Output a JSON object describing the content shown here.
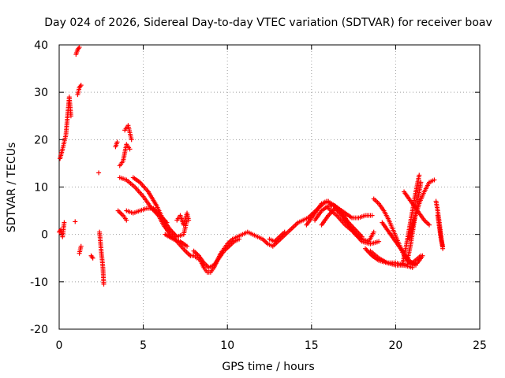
{
  "chart_data": {
    "type": "scatter",
    "title": "Day 024 of 2026, Sidereal Day-to-day VTEC variation (SDTVAR) for receiver boav",
    "xlabel": "GPS time / hours",
    "ylabel": "SDTVAR / TECUs",
    "xlim": [
      0,
      25
    ],
    "ylim": [
      -20,
      40
    ],
    "xticks": [
      0,
      5,
      10,
      15,
      20,
      25
    ],
    "xtick_labels": [
      "0",
      "5",
      "10",
      "15",
      "20",
      "25"
    ],
    "yticks": [
      -20,
      -10,
      0,
      10,
      20,
      30,
      40
    ],
    "ytick_labels": [
      "-20",
      "-10",
      "0",
      "10",
      "20",
      "30",
      "40"
    ],
    "grid": true,
    "marker": "+",
    "color": "#ff0000",
    "series": [
      {
        "name": "SDTVAR",
        "clusters": [
          {
            "kind": "line",
            "x": [
              0.0,
              0.1,
              0.2,
              0.3
            ],
            "y": [
              0.5,
              1.0,
              -0.5,
              2.5
            ]
          },
          {
            "kind": "line",
            "x": [
              0.05,
              0.2,
              0.4,
              0.5,
              0.6,
              0.7
            ],
            "y": [
              16.0,
              18.0,
              21.0,
              25.0,
              29.0,
              25.0
            ]
          },
          {
            "kind": "line",
            "x": [
              1.0,
              1.1,
              1.2
            ],
            "y": [
              38.0,
              39.0,
              39.5
            ]
          },
          {
            "kind": "line",
            "x": [
              1.1,
              1.2,
              1.3
            ],
            "y": [
              29.5,
              31.0,
              31.5
            ]
          },
          {
            "kind": "line",
            "x": [
              0.95
            ],
            "y": [
              2.7
            ]
          },
          {
            "kind": "line",
            "x": [
              1.2,
              1.3
            ],
            "y": [
              -4.0,
              -2.5
            ]
          },
          {
            "kind": "line",
            "x": [
              1.9,
              2.0
            ],
            "y": [
              -4.5,
              -5.0
            ]
          },
          {
            "kind": "line",
            "x": [
              2.35
            ],
            "y": [
              13.0
            ]
          },
          {
            "kind": "line",
            "x": [
              2.4,
              2.5,
              2.6,
              2.65
            ],
            "y": [
              0.5,
              -3.5,
              -7.0,
              -10.5
            ]
          },
          {
            "kind": "line",
            "x": [
              3.35,
              3.45
            ],
            "y": [
              18.5,
              19.5
            ]
          },
          {
            "kind": "line",
            "x": [
              3.6,
              3.8,
              4.0,
              4.2
            ],
            "y": [
              14.5,
              15.5,
              19.0,
              18.0
            ]
          },
          {
            "kind": "line",
            "x": [
              3.9,
              4.1,
              4.3
            ],
            "y": [
              22.0,
              23.0,
              20.0
            ]
          },
          {
            "kind": "line",
            "x": [
              3.5,
              3.8,
              4.0
            ],
            "y": [
              5.0,
              4.0,
              3.0
            ]
          },
          {
            "kind": "line",
            "x": [
              3.6,
              4.0,
              4.5,
              5.0,
              5.5,
              5.9,
              6.2,
              6.6,
              7.0,
              7.5,
              7.8
            ],
            "y": [
              12.0,
              11.5,
              10.0,
              8.0,
              5.5,
              4.0,
              2.0,
              0.0,
              -1.5,
              -3.5,
              -4.5
            ]
          },
          {
            "kind": "line",
            "x": [
              4.0,
              4.4,
              4.8,
              5.2,
              5.6,
              6.0,
              6.4
            ],
            "y": [
              5.0,
              4.5,
              5.0,
              5.5,
              5.5,
              4.0,
              2.5
            ]
          },
          {
            "kind": "line",
            "x": [
              4.4,
              4.8,
              5.3,
              5.8,
              6.2,
              6.6,
              7.0,
              7.4,
              7.6
            ],
            "y": [
              12.0,
              11.0,
              9.0,
              6.0,
              3.0,
              1.0,
              -0.5,
              0.0,
              3.0
            ]
          },
          {
            "kind": "line",
            "x": [
              6.3,
              6.8,
              7.2,
              7.6
            ],
            "y": [
              0.0,
              -1.0,
              -1.5,
              -2.5
            ]
          },
          {
            "kind": "line",
            "x": [
              7.0,
              7.2,
              7.4,
              7.6,
              7.7
            ],
            "y": [
              3.0,
              4.0,
              2.0,
              4.5,
              3.0
            ]
          },
          {
            "kind": "line",
            "x": [
              7.8,
              8.0,
              8.2,
              8.4,
              8.6,
              8.8,
              9.0,
              9.2,
              9.4,
              9.6,
              9.8,
              10.0,
              10.3,
              10.6,
              10.9,
              11.2,
              11.5,
              11.8,
              12.1,
              12.4,
              12.7,
              13.0,
              13.3,
              13.6,
              13.9,
              14.2,
              14.5,
              14.8,
              15.1,
              15.4,
              15.7,
              16.0,
              16.2
            ],
            "y": [
              -4.5,
              -4.5,
              -5.0,
              -5.5,
              -7.0,
              -8.0,
              -8.0,
              -7.0,
              -5.5,
              -4.0,
              -3.0,
              -2.0,
              -1.0,
              -0.5,
              0.0,
              0.5,
              0.0,
              -0.5,
              -1.0,
              -2.0,
              -2.5,
              -1.5,
              -0.5,
              0.5,
              1.5,
              2.5,
              3.0,
              3.5,
              4.5,
              5.5,
              6.5,
              7.0,
              6.0
            ]
          },
          {
            "kind": "line",
            "x": [
              8.0,
              8.3,
              8.6,
              8.9,
              9.2,
              9.5,
              9.8,
              10.1,
              10.4,
              10.7
            ],
            "y": [
              -3.5,
              -4.5,
              -6.0,
              -7.0,
              -6.5,
              -5.0,
              -3.5,
              -2.5,
              -1.5,
              -1.0
            ]
          },
          {
            "kind": "line",
            "x": [
              12.5,
              12.8,
              13.1,
              13.4
            ],
            "y": [
              -1.0,
              -1.5,
              -0.5,
              0.5
            ]
          },
          {
            "kind": "line",
            "x": [
              14.7,
              15.0,
              15.3,
              15.6,
              15.9,
              16.2,
              16.6,
              17.0,
              17.4,
              17.8,
              18.2,
              18.6
            ],
            "y": [
              2.0,
              3.5,
              5.0,
              6.5,
              7.0,
              6.5,
              5.5,
              4.5,
              3.5,
              3.5,
              4.0,
              4.0
            ]
          },
          {
            "kind": "line",
            "x": [
              15.2,
              15.6,
              16.0,
              16.4,
              16.8,
              17.2,
              17.6,
              18.0
            ],
            "y": [
              3.0,
              5.0,
              6.0,
              6.0,
              4.5,
              2.5,
              1.0,
              -0.5
            ]
          },
          {
            "kind": "line",
            "x": [
              15.6,
              16.0,
              16.4,
              16.8,
              17.2,
              17.6,
              18.0,
              18.4,
              18.7
            ],
            "y": [
              2.0,
              4.0,
              5.5,
              4.0,
              2.0,
              0.0,
              -1.0,
              -1.5,
              0.5
            ]
          },
          {
            "kind": "line",
            "x": [
              16.0,
              16.5,
              17.0,
              17.5,
              18.0,
              18.5,
              19.0
            ],
            "y": [
              5.5,
              4.0,
              2.0,
              0.5,
              -1.5,
              -2.0,
              -1.5
            ]
          },
          {
            "kind": "line",
            "x": [
              18.7,
              19.0,
              19.3,
              19.6,
              19.9,
              20.2,
              20.5,
              20.8,
              21.0,
              21.3,
              21.6
            ],
            "y": [
              7.5,
              6.5,
              5.0,
              3.0,
              0.5,
              -2.0,
              -4.5,
              -6.0,
              -6.5,
              -6.0,
              -4.5
            ]
          },
          {
            "kind": "line",
            "x": [
              19.2,
              19.6,
              20.0,
              20.4,
              20.8,
              21.2
            ],
            "y": [
              2.5,
              0.5,
              -1.5,
              -3.5,
              -5.5,
              -6.5
            ]
          },
          {
            "kind": "line",
            "x": [
              18.2,
              18.6,
              19.0,
              19.5,
              20.0,
              20.5,
              21.0
            ],
            "y": [
              -3.0,
              -4.5,
              -5.5,
              -6.0,
              -6.5,
              -6.5,
              -7.0
            ]
          },
          {
            "kind": "line",
            "x": [
              18.5,
              19.0,
              19.5,
              20.0,
              20.5,
              21.0,
              21.5
            ],
            "y": [
              -3.5,
              -5.0,
              -6.0,
              -6.0,
              -6.5,
              -6.0,
              -4.5
            ]
          },
          {
            "kind": "line",
            "x": [
              20.7,
              20.9,
              21.1,
              21.3,
              21.5
            ],
            "y": [
              -5.5,
              -2.0,
              2.5,
              7.0,
              11.0
            ]
          },
          {
            "kind": "line",
            "x": [
              20.4,
              20.6,
              20.8,
              21.0,
              21.2,
              21.4
            ],
            "y": [
              -6.5,
              -3.0,
              1.0,
              5.0,
              9.0,
              12.5
            ]
          },
          {
            "kind": "line",
            "x": [
              20.8,
              21.1,
              21.4,
              21.7,
              22.0,
              22.3
            ],
            "y": [
              -1.0,
              3.0,
              6.5,
              9.0,
              11.0,
              11.5
            ]
          },
          {
            "kind": "line",
            "x": [
              20.5,
              20.8,
              21.1,
              21.4,
              21.7,
              22.0
            ],
            "y": [
              9.0,
              7.5,
              6.0,
              4.5,
              3.0,
              2.0
            ]
          },
          {
            "kind": "line",
            "x": [
              22.4,
              22.5,
              22.6,
              22.7,
              22.8
            ],
            "y": [
              7.0,
              5.0,
              2.5,
              -0.5,
              -3.0
            ]
          },
          {
            "kind": "line",
            "x": [
              22.5,
              22.6,
              22.7,
              22.8
            ],
            "y": [
              4.0,
              1.5,
              -1.0,
              -2.5
            ]
          }
        ]
      }
    ]
  }
}
